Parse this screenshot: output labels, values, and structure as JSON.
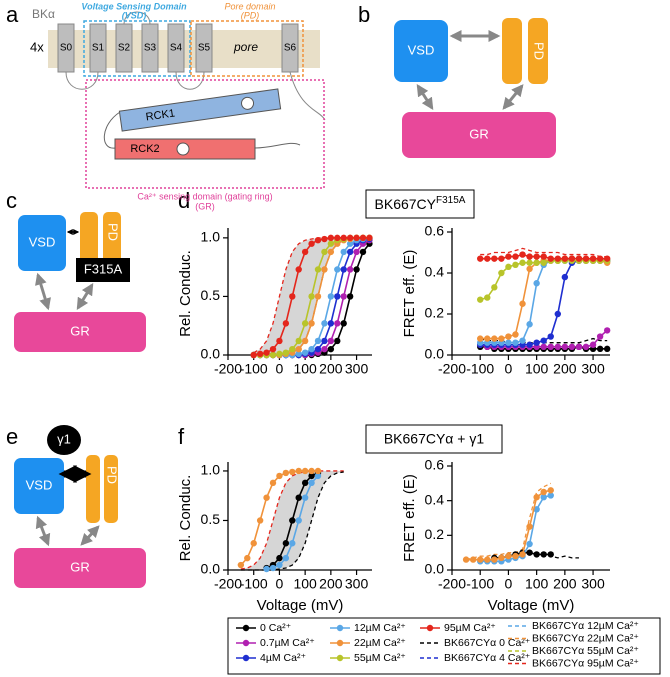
{
  "panel_labels": [
    "a",
    "b",
    "c",
    "d",
    "e",
    "f"
  ],
  "diagram_a": {
    "protein": "BKα",
    "stoichiometry": "4x",
    "vsd_label": "Voltage Sensing Domain",
    "vsd_abbr": "(VSD)",
    "pd_label": "Pore domain",
    "pd_abbr": "(PD)",
    "segments": [
      "S0",
      "S1",
      "S2",
      "S3",
      "S4",
      "S5",
      "S6"
    ],
    "pore": "pore",
    "rck1": "RCK1",
    "rck2": "RCK2",
    "gr_label": "Ca²⁺ sensing domain (gating ring)",
    "gr_abbr": "(GR)"
  },
  "diagram_b": {
    "vsd": "VSD",
    "pd": "PD",
    "gr": "GR"
  },
  "diagram_c": {
    "vsd": "VSD",
    "pd": "PD",
    "mutation": "F315A",
    "gr": "GR"
  },
  "diagram_e": {
    "subunit": "γ1",
    "vsd": "VSD",
    "pd": "PD",
    "gr": "GR"
  },
  "panel_d_title": {
    "text": "BK667CY",
    "sup": "F315A"
  },
  "panel_f_title": "BK667CYα + γ1",
  "legend": {
    "entries": [
      {
        "label": "0 Ca²⁺",
        "color": "#000000",
        "style": "dot"
      },
      {
        "label": "0.7µM Ca²⁺",
        "color": "#b020b0",
        "style": "dot"
      },
      {
        "label": "4µM Ca²⁺",
        "color": "#1f2fd0",
        "style": "dot"
      },
      {
        "label": "12µM Ca²⁺",
        "color": "#5aa7e6",
        "style": "dot"
      },
      {
        "label": "22µM Ca²⁺",
        "color": "#f0923a",
        "style": "dot"
      },
      {
        "label": "55µM Ca²⁺",
        "color": "#b8c42a",
        "style": "dot"
      },
      {
        "label": "95µM Ca²⁺",
        "color": "#e4261c",
        "style": "dot"
      },
      {
        "label": "BK667CYα 0 Ca²⁺",
        "color": "#000000",
        "style": "dash"
      },
      {
        "label": "BK667CYα 4 Ca²⁺",
        "color": "#1f2fd0",
        "style": "dash"
      },
      {
        "label": "BK667CYα 12µM Ca²⁺",
        "color": "#5aa7e6",
        "style": "dash"
      },
      {
        "label": "BK667CYα 22µM Ca²⁺",
        "color": "#f0923a",
        "style": "dash"
      },
      {
        "label": "BK667CYα 55µM Ca²⁺",
        "color": "#b8c42a",
        "style": "dash"
      },
      {
        "label": "BK667CYα 95µM Ca²⁺",
        "color": "#e4261c",
        "style": "dash"
      }
    ]
  },
  "chart_data": [
    {
      "type": "line",
      "ylabel": "Rel. Conduc.",
      "shade": true,
      "x": [
        -100,
        -75,
        -50,
        -25,
        0,
        25,
        50,
        75,
        100,
        125,
        150,
        175,
        200,
        225,
        250,
        275,
        300,
        325,
        350
      ],
      "xlim": [
        -200,
        360
      ],
      "xticks": [
        -200,
        -100,
        0,
        100,
        200,
        300
      ],
      "ylim": [
        0,
        1.05
      ],
      "yticks": [
        {
          "value": 0,
          "label": "0.0"
        },
        {
          "value": 0.5,
          "label": "0.5"
        },
        {
          "value": 1,
          "label": "1.0"
        }
      ],
      "series": [
        {
          "color": "#e4261c",
          "style": "dash",
          "values": [
            0.02,
            0.05,
            0.12,
            0.27,
            0.5,
            0.73,
            0.88,
            0.95,
            0.98,
            0.99,
            1,
            1,
            1,
            1,
            1,
            1,
            1,
            1,
            1
          ]
        },
        {
          "color": "#000000",
          "style": "dash",
          "values": [
            0,
            0,
            0,
            0,
            0,
            0.01,
            0.02,
            0.05,
            0.12,
            0.27,
            0.5,
            0.73,
            0.88,
            0.95,
            0.98,
            0.99,
            1,
            1,
            1
          ]
        },
        {
          "color": "#000000",
          "style": "dot",
          "values": [
            0,
            0,
            0,
            0,
            0,
            0,
            0,
            0,
            0,
            0,
            0.01,
            0.02,
            0.05,
            0.12,
            0.27,
            0.5,
            0.73,
            0.88,
            0.95
          ]
        },
        {
          "color": "#b020b0",
          "style": "dot",
          "values": [
            0,
            0,
            0,
            0,
            0,
            0,
            0,
            0,
            0,
            0.01,
            0.02,
            0.05,
            0.12,
            0.27,
            0.5,
            0.73,
            0.88,
            0.95,
            0.98
          ]
        },
        {
          "color": "#1f2fd0",
          "style": "dot",
          "values": [
            0,
            0,
            0,
            0,
            0,
            0,
            0,
            0,
            0.01,
            0.02,
            0.05,
            0.12,
            0.27,
            0.5,
            0.73,
            0.88,
            0.95,
            0.98,
            0.99
          ]
        },
        {
          "color": "#5aa7e6",
          "style": "dot",
          "values": [
            0,
            0,
            0,
            0,
            0,
            0,
            0,
            0.01,
            0.02,
            0.05,
            0.12,
            0.27,
            0.5,
            0.73,
            0.88,
            0.95,
            0.98,
            0.99,
            1
          ]
        },
        {
          "color": "#f0923a",
          "style": "dot",
          "values": [
            0,
            0,
            0,
            0,
            0,
            0.01,
            0.02,
            0.05,
            0.12,
            0.27,
            0.5,
            0.73,
            0.88,
            0.95,
            0.98,
            0.99,
            1,
            1,
            1
          ]
        },
        {
          "color": "#b8c42a",
          "style": "dot",
          "values": [
            0,
            0,
            0,
            0,
            0.01,
            0.02,
            0.05,
            0.12,
            0.27,
            0.5,
            0.73,
            0.88,
            0.95,
            0.98,
            0.99,
            1,
            1,
            1,
            1
          ]
        },
        {
          "color": "#e4261c",
          "style": "dot",
          "values": [
            0,
            0.01,
            0.02,
            0.05,
            0.12,
            0.27,
            0.5,
            0.73,
            0.88,
            0.95,
            0.98,
            0.99,
            1,
            1,
            1,
            1,
            1,
            1,
            1
          ]
        }
      ]
    },
    {
      "type": "line",
      "ylabel": "FRET eff. (E)",
      "x": [
        -100,
        -75,
        -50,
        -25,
        0,
        25,
        50,
        75,
        100,
        125,
        150,
        175,
        200,
        225,
        250,
        275,
        300,
        325,
        350
      ],
      "xlim": [
        -200,
        360
      ],
      "xticks": [
        -200,
        -100,
        0,
        100,
        200,
        300
      ],
      "ylim": [
        0,
        0.6
      ],
      "yticks": [
        {
          "value": 0,
          "label": "0.0"
        },
        {
          "value": 0.2,
          "label": "0.2"
        },
        {
          "value": 0.4,
          "label": "0.4"
        },
        {
          "value": 0.6,
          "label": "0.6"
        }
      ],
      "series": [
        {
          "color": "#000000",
          "style": "dash",
          "values": [
            0.08,
            0.07,
            0.07,
            0.07,
            0.06,
            0.06,
            0.06,
            0.06,
            0.06,
            0.06,
            0.06,
            0.06,
            0.06,
            0.06,
            0.06,
            0.07,
            0.08,
            0.07,
            0.07
          ]
        },
        {
          "color": "#e4261c",
          "style": "dash",
          "values": [
            0.49,
            0.49,
            0.5,
            0.5,
            0.5,
            0.51,
            0.52,
            0.51,
            0.5,
            0.5,
            0.5,
            0.5,
            0.49,
            0.49,
            0.49,
            0.49,
            0.49,
            0.48,
            0.48
          ]
        },
        {
          "color": "#000000",
          "style": "dot",
          "values": [
            0.04,
            0.04,
            0.03,
            0.03,
            0.03,
            0.03,
            0.03,
            0.03,
            0.03,
            0.03,
            0.03,
            0.03,
            0.03,
            0.03,
            0.04,
            0.03,
            0.03,
            0.03,
            0.03
          ]
        },
        {
          "color": "#b020b0",
          "style": "dot",
          "values": [
            0.05,
            0.04,
            0.04,
            0.04,
            0.04,
            0.04,
            0.04,
            0.04,
            0.04,
            0.04,
            0.04,
            0.04,
            0.04,
            0.04,
            0.04,
            0.04,
            0.05,
            0.09,
            0.12
          ]
        },
        {
          "color": "#1f2fd0",
          "style": "dot",
          "values": [
            0.05,
            0.05,
            0.05,
            0.05,
            0.05,
            0.05,
            0.05,
            0.05,
            0.06,
            0.07,
            0.09,
            0.2,
            0.38,
            0.45,
            0.46,
            0.46,
            0.46,
            0.46,
            0.46
          ]
        },
        {
          "color": "#5aa7e6",
          "style": "dot",
          "values": [
            0.06,
            0.06,
            0.06,
            0.06,
            0.06,
            0.06,
            0.07,
            0.15,
            0.35,
            0.44,
            0.46,
            0.46,
            0.46,
            0.47,
            0.47,
            0.46,
            0.46,
            0.46,
            0.46
          ]
        },
        {
          "color": "#f0923a",
          "style": "dot",
          "values": [
            0.08,
            0.08,
            0.08,
            0.08,
            0.09,
            0.1,
            0.25,
            0.42,
            0.45,
            0.46,
            0.46,
            0.46,
            0.47,
            0.47,
            0.47,
            0.46,
            0.46,
            0.46,
            0.45
          ]
        },
        {
          "color": "#b8c42a",
          "style": "dot",
          "values": [
            0.27,
            0.28,
            0.33,
            0.4,
            0.43,
            0.44,
            0.45,
            0.45,
            0.45,
            0.45,
            0.46,
            0.46,
            0.46,
            0.46,
            0.46,
            0.46,
            0.46,
            0.46,
            0.46
          ]
        },
        {
          "color": "#e4261c",
          "style": "dot",
          "values": [
            0.47,
            0.47,
            0.47,
            0.47,
            0.48,
            0.48,
            0.49,
            0.48,
            0.48,
            0.48,
            0.47,
            0.47,
            0.47,
            0.47,
            0.47,
            0.47,
            0.47,
            0.47,
            0.47
          ]
        }
      ]
    },
    {
      "type": "line",
      "ylabel": "Rel. Conduc.",
      "xlabel": "Voltage (mV)",
      "shade": true,
      "x": [
        -150,
        -125,
        -100,
        -75,
        -50,
        -25,
        0,
        25,
        50,
        75,
        100,
        125,
        150,
        175,
        200,
        225,
        250
      ],
      "xlim": [
        -200,
        360
      ],
      "xticks": [
        -200,
        -100,
        0,
        100,
        200,
        300
      ],
      "ylim": [
        0,
        1.05
      ],
      "yticks": [
        {
          "value": 0,
          "label": "0.0"
        },
        {
          "value": 0.5,
          "label": "0.5"
        },
        {
          "value": 1,
          "label": "1.0"
        }
      ],
      "series": [
        {
          "color": "#e4261c",
          "style": "dash",
          "values": [
            0.01,
            0.02,
            0.05,
            0.12,
            0.27,
            0.5,
            0.73,
            0.88,
            0.95,
            0.98,
            0.99,
            1,
            1,
            1,
            1,
            1,
            1
          ]
        },
        {
          "color": "#000000",
          "style": "dash",
          "values": [
            0,
            0,
            0,
            0,
            0,
            0,
            0.01,
            0.02,
            0.05,
            0.12,
            0.27,
            0.5,
            0.73,
            0.88,
            0.95,
            0.98,
            0.99
          ]
        },
        {
          "color": "#000000",
          "style": "dot",
          "values": [
            null,
            null,
            null,
            null,
            0.02,
            0.05,
            0.12,
            0.27,
            0.5,
            0.73,
            0.88,
            0.95,
            0.98,
            null,
            null,
            null,
            null
          ]
        },
        {
          "color": "#5aa7e6",
          "style": "dot",
          "values": [
            null,
            null,
            null,
            null,
            0.01,
            0.02,
            0.05,
            0.12,
            0.27,
            0.5,
            0.73,
            0.88,
            0.95,
            null,
            null,
            null,
            null
          ]
        },
        {
          "color": "#f0923a",
          "style": "dot",
          "values": [
            0.05,
            0.12,
            0.27,
            0.5,
            0.73,
            0.88,
            0.95,
            0.98,
            0.99,
            1,
            1,
            1,
            1,
            null,
            null,
            null,
            null
          ]
        }
      ]
    },
    {
      "type": "line",
      "ylabel": "FRET eff. (E)",
      "xlabel": "Voltage (mV)",
      "x": [
        -150,
        -125,
        -100,
        -75,
        -50,
        -25,
        0,
        25,
        50,
        75,
        100,
        125,
        150,
        175,
        200,
        225,
        250
      ],
      "xlim": [
        -200,
        360
      ],
      "xticks": [
        -200,
        -100,
        0,
        100,
        200,
        300
      ],
      "ylim": [
        0,
        0.6
      ],
      "yticks": [
        {
          "value": 0,
          "label": "0.0"
        },
        {
          "value": 0.2,
          "label": "0.2"
        },
        {
          "value": 0.4,
          "label": "0.4"
        },
        {
          "value": 0.6,
          "label": "0.6"
        }
      ],
      "series": [
        {
          "color": "#000000",
          "style": "dash",
          "values": [
            0.06,
            0.06,
            0.06,
            0.06,
            0.06,
            0.07,
            0.08,
            0.09,
            0.11,
            0.1,
            0.09,
            0.09,
            0.08,
            0.07,
            0.08,
            0.07,
            0.07
          ]
        },
        {
          "color": "#f0923a",
          "style": "dash",
          "values": [
            0.06,
            0.07,
            0.08,
            0.08,
            0.09,
            0.09,
            0.1,
            0.1,
            0.12,
            0.3,
            0.45,
            0.48,
            0.5,
            null,
            null,
            null,
            null
          ]
        },
        {
          "color": "#000000",
          "style": "dot",
          "values": [
            null,
            null,
            null,
            null,
            0.07,
            0.07,
            0.08,
            0.09,
            0.1,
            0.1,
            0.09,
            0.09,
            0.09,
            null,
            null,
            null,
            null
          ]
        },
        {
          "color": "#5aa7e6",
          "style": "dot",
          "values": [
            null,
            null,
            0.05,
            0.05,
            0.05,
            0.05,
            0.06,
            0.07,
            0.08,
            0.15,
            0.35,
            0.42,
            0.43,
            null,
            null,
            null,
            null
          ]
        },
        {
          "color": "#f0923a",
          "style": "dot",
          "values": [
            0.06,
            0.06,
            0.06,
            0.06,
            0.06,
            0.07,
            0.08,
            0.08,
            0.09,
            0.25,
            0.42,
            0.45,
            0.46,
            null,
            null,
            null,
            null
          ]
        }
      ]
    }
  ]
}
